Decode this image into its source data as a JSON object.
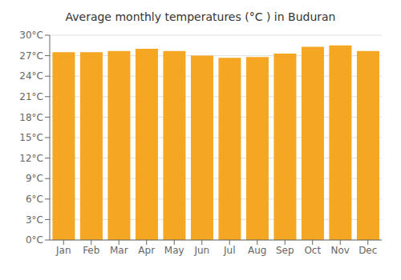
{
  "chart_data": {
    "type": "bar",
    "title": "Average monthly temperatures (°C ) in Buduran",
    "categories": [
      "Jan",
      "Feb",
      "Mar",
      "Apr",
      "May",
      "Jun",
      "Jul",
      "Aug",
      "Sep",
      "Oct",
      "Nov",
      "Dec"
    ],
    "values": [
      27.5,
      27.5,
      27.7,
      28.0,
      27.7,
      27.0,
      26.7,
      26.8,
      27.3,
      28.3,
      28.5,
      27.7
    ],
    "color": "#F5A623",
    "ylim": [
      0,
      30
    ],
    "yticks": [
      {
        "value": 0,
        "label": "0°C"
      },
      {
        "value": 3,
        "label": "3°C"
      },
      {
        "value": 6,
        "label": "6°C"
      },
      {
        "value": 9,
        "label": "9°C"
      },
      {
        "value": 12,
        "label": "12°C"
      },
      {
        "value": 15,
        "label": "15°C"
      },
      {
        "value": 18,
        "label": "18°C"
      },
      {
        "value": 21,
        "label": "21°C"
      },
      {
        "value": 24,
        "label": "24°C"
      },
      {
        "value": 27,
        "label": "27°C"
      },
      {
        "value": 30,
        "label": "30°C"
      }
    ],
    "grid": true
  }
}
